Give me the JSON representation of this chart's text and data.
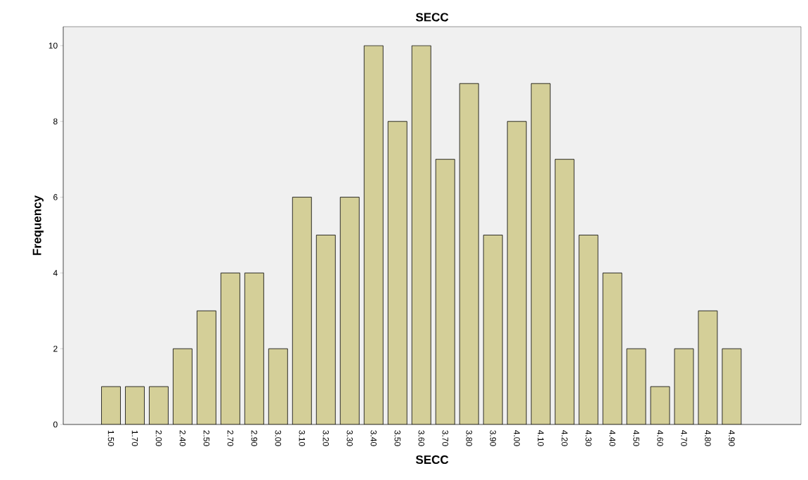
{
  "chart_data": {
    "type": "bar",
    "title": "SECC",
    "xlabel": "SECC",
    "ylabel": "Frequency",
    "categories": [
      "1.50",
      "1.70",
      "2.00",
      "2.40",
      "2.50",
      "2.70",
      "2.90",
      "3.00",
      "3.10",
      "3.20",
      "3.30",
      "3.40",
      "3.50",
      "3.60",
      "3.70",
      "3.80",
      "3.90",
      "4.00",
      "4.10",
      "4.20",
      "4.30",
      "4.40",
      "4.50",
      "4.60",
      "4.70",
      "4.80",
      "4.90"
    ],
    "values": [
      1,
      1,
      1,
      2,
      3,
      4,
      4,
      2,
      6,
      5,
      6,
      10,
      8,
      10,
      7,
      9,
      5,
      8,
      9,
      7,
      5,
      4,
      2,
      1,
      2,
      3,
      2
    ],
    "color": "#d4cf98",
    "ylim": [
      0,
      10.5
    ],
    "yticks": [
      0,
      2,
      4,
      6,
      8,
      10
    ]
  }
}
